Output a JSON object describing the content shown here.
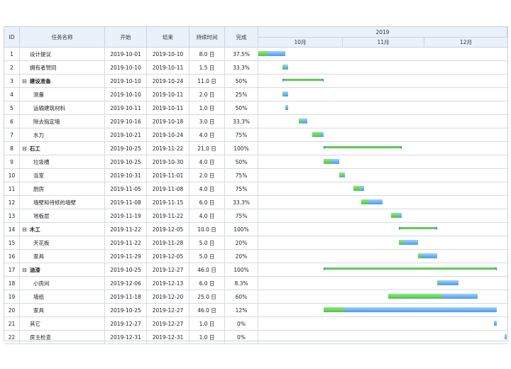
{
  "header": {
    "id": "ID",
    "name": "任务名称",
    "start": "开始",
    "end": "结束",
    "duration": "持续时间",
    "complete": "完成",
    "year": "2019",
    "months": [
      "10月",
      "11月",
      "12月"
    ]
  },
  "timeline_range": {
    "start": "2019-10-01",
    "end": "2019-12-31"
  },
  "colors": {
    "progress": "#4fc24a",
    "remaining": "#4c9ae8",
    "header_bg": "#e9f1fa",
    "grid": "#d5dbe2"
  },
  "tasks": [
    {
      "id": "1",
      "name": "设计提议",
      "start": "2019-10-01",
      "end": "2019-10-10",
      "duration": "8.0 日",
      "complete": "37.5%",
      "level": 1,
      "summary": false,
      "progress": 0.375
    },
    {
      "id": "2",
      "name": "拥有者赞同",
      "start": "2019-10-10",
      "end": "2019-10-11",
      "duration": "1.5 日",
      "complete": "33.3%",
      "level": 1,
      "summary": false,
      "progress": 0.333
    },
    {
      "id": "3",
      "name": "建设准备",
      "start": "2019-10-10",
      "end": "2019-10-24",
      "duration": "11.0 日",
      "complete": "50%",
      "level": 0,
      "summary": true,
      "toggle": "⊟",
      "progress": 0.5
    },
    {
      "id": "4",
      "name": "测量",
      "start": "2019-10-10",
      "end": "2019-10-11",
      "duration": "2.0 日",
      "complete": "25%",
      "level": 2,
      "summary": false,
      "progress": 0.25
    },
    {
      "id": "5",
      "name": "运输建筑材料",
      "start": "2019-10-11",
      "end": "2019-10-11",
      "duration": "1.0 日",
      "complete": "50%",
      "level": 2,
      "summary": false,
      "progress": 0.5
    },
    {
      "id": "6",
      "name": "除去指定墙",
      "start": "2019-10-16",
      "end": "2019-10-18",
      "duration": "3.0 日",
      "complete": "33.3%",
      "level": 2,
      "summary": false,
      "progress": 0.333
    },
    {
      "id": "7",
      "name": "水力",
      "start": "2019-10-21",
      "end": "2019-10-24",
      "duration": "4.0 日",
      "complete": "75%",
      "level": 2,
      "summary": false,
      "progress": 0.75
    },
    {
      "id": "8",
      "name": "石工",
      "start": "2019-10-25",
      "end": "2019-11-22",
      "duration": "21.0 日",
      "complete": "100%",
      "level": 0,
      "summary": true,
      "toggle": "⊟",
      "progress": 1.0
    },
    {
      "id": "9",
      "name": "垃圾槽",
      "start": "2019-10-25",
      "end": "2019-10-30",
      "duration": "4.0 日",
      "complete": "50%",
      "level": 2,
      "summary": false,
      "progress": 0.5
    },
    {
      "id": "10",
      "name": "浴室",
      "start": "2019-10-31",
      "end": "2019-11-01",
      "duration": "2.0 日",
      "complete": "75%",
      "level": 2,
      "summary": false,
      "progress": 0.75
    },
    {
      "id": "11",
      "name": "厨房",
      "start": "2019-11-05",
      "end": "2019-11-08",
      "duration": "4.0 日",
      "complete": "75%",
      "level": 2,
      "summary": false,
      "progress": 0.75
    },
    {
      "id": "12",
      "name": "墙壁和待修的墙壁",
      "start": "2019-11-08",
      "end": "2019-11-15",
      "duration": "6.0 日",
      "complete": "33.3%",
      "level": 2,
      "summary": false,
      "progress": 0.333
    },
    {
      "id": "13",
      "name": "地板层",
      "start": "2019-11-19",
      "end": "2019-11-22",
      "duration": "4.0 日",
      "complete": "75%",
      "level": 2,
      "summary": false,
      "progress": 0.75
    },
    {
      "id": "14",
      "name": "木工",
      "start": "2019-11-22",
      "end": "2019-12-05",
      "duration": "10.0 日",
      "complete": "100%",
      "level": 0,
      "summary": true,
      "toggle": "⊟",
      "progress": 1.0
    },
    {
      "id": "15",
      "name": "天花板",
      "start": "2019-11-22",
      "end": "2019-11-28",
      "duration": "5.0 日",
      "complete": "20%",
      "level": 2,
      "summary": false,
      "progress": 0.2
    },
    {
      "id": "16",
      "name": "家具",
      "start": "2019-11-29",
      "end": "2019-12-05",
      "duration": "5.0 日",
      "complete": "20%",
      "level": 2,
      "summary": false,
      "progress": 0.2
    },
    {
      "id": "17",
      "name": "油漆",
      "start": "2019-10-25",
      "end": "2019-12-27",
      "duration": "46.0 日",
      "complete": "100%",
      "level": 0,
      "summary": true,
      "toggle": "⊟",
      "progress": 1.0
    },
    {
      "id": "18",
      "name": "小房间",
      "start": "2019-12-06",
      "end": "2019-12-13",
      "duration": "6.0 日",
      "complete": "8.3%",
      "level": 2,
      "summary": false,
      "progress": 0.083
    },
    {
      "id": "19",
      "name": "墙纸",
      "start": "2019-11-18",
      "end": "2019-12-20",
      "duration": "25.0 日",
      "complete": "60%",
      "level": 2,
      "summary": false,
      "progress": 0.6
    },
    {
      "id": "20",
      "name": "家具",
      "start": "2019-10-25",
      "end": "2019-12-27",
      "duration": "46.0 日",
      "complete": "12%",
      "level": 2,
      "summary": false,
      "progress": 0.12
    },
    {
      "id": "21",
      "name": "其它",
      "start": "2019-12-27",
      "end": "2019-12-27",
      "duration": "1.0 日",
      "complete": "0%",
      "level": 1,
      "summary": false,
      "progress": 0.0
    },
    {
      "id": "22",
      "name": "房主检查",
      "start": "2019-12-31",
      "end": "2019-12-31",
      "duration": "1.0 日",
      "complete": "0%",
      "level": 1,
      "summary": false,
      "progress": 0.0
    }
  ]
}
